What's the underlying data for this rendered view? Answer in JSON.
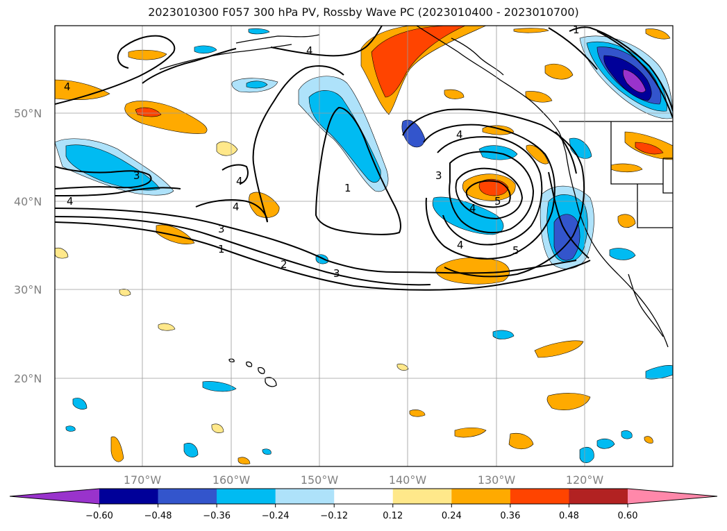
{
  "title": "2023010300 F057 300 hPa PV, Rossby Wave PC (2023010400 - 2023010700)",
  "map": {
    "lat_labels": [
      "50°N",
      "40°N",
      "30°N",
      "20°N"
    ],
    "lon_labels": [
      "170°W",
      "160°W",
      "150°W",
      "140°W",
      "130°W",
      "120°W"
    ],
    "contour_labels": [
      "4",
      "4",
      "4",
      "3",
      "4",
      "4",
      "3",
      "1",
      "2",
      "3",
      "1",
      "4",
      "3",
      "4",
      "5",
      "4",
      "5",
      "1"
    ]
  },
  "colorbar": {
    "ticks": [
      "−0.60",
      "−0.48",
      "−0.36",
      "−0.24",
      "−0.12",
      "0.12",
      "0.24",
      "0.36",
      "0.48",
      "0.60"
    ],
    "colors": [
      "#9933cc",
      "#000099",
      "#3355cc",
      "#00bbf2",
      "#aee2fa",
      "#ffffff",
      "#ffe88a",
      "#ffaa00",
      "#ff4400",
      "#b22222",
      "#ff88aa"
    ]
  }
}
